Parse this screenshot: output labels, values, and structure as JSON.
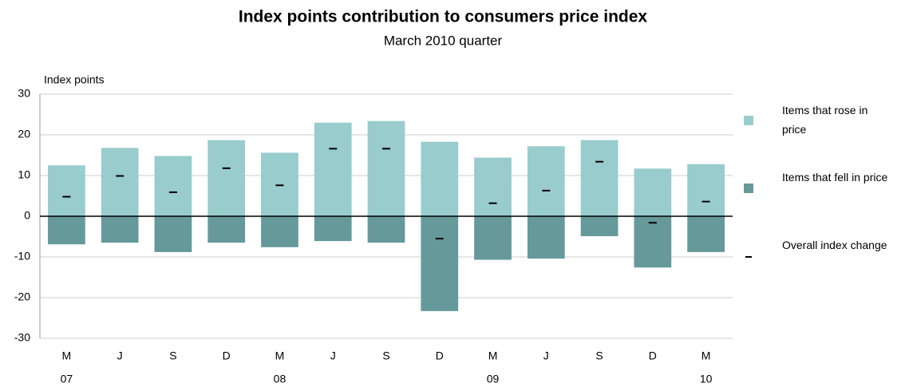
{
  "chart_data": {
    "type": "bar",
    "title": "Index points contribution to consumers price index",
    "subtitle": "March 2010 quarter",
    "y_label": "Index points",
    "categories": [
      "M",
      "J",
      "S",
      "D",
      "M",
      "J",
      "S",
      "D",
      "M",
      "J",
      "S",
      "D",
      "M"
    ],
    "x_sublabels": [
      "07",
      null,
      null,
      null,
      "08",
      null,
      null,
      null,
      "09",
      null,
      null,
      null,
      "10"
    ],
    "series": [
      {
        "name": "Items that rose in price",
        "color": "#99cccc",
        "values": [
          12.5,
          16.8,
          14.8,
          18.7,
          15.6,
          23.0,
          23.4,
          18.3,
          14.4,
          17.2,
          18.7,
          11.7,
          12.8
        ]
      },
      {
        "name": "Items that fell in price",
        "color": "#669999",
        "values": [
          -6.9,
          -6.5,
          -8.8,
          -6.5,
          -7.6,
          -6.1,
          -6.5,
          -23.3,
          -10.7,
          -10.4,
          -4.9,
          -12.6,
          -8.8
        ]
      },
      {
        "name": "Overall index change",
        "color": "#000000",
        "values": [
          4.8,
          9.9,
          5.9,
          11.8,
          7.6,
          16.6,
          16.6,
          -5.5,
          3.2,
          6.3,
          13.4,
          -1.6,
          3.6
        ]
      }
    ],
    "ylim": [
      -30,
      30
    ],
    "yticks": [
      -30,
      -20,
      -10,
      0,
      10,
      20,
      30
    ],
    "grid": true
  }
}
